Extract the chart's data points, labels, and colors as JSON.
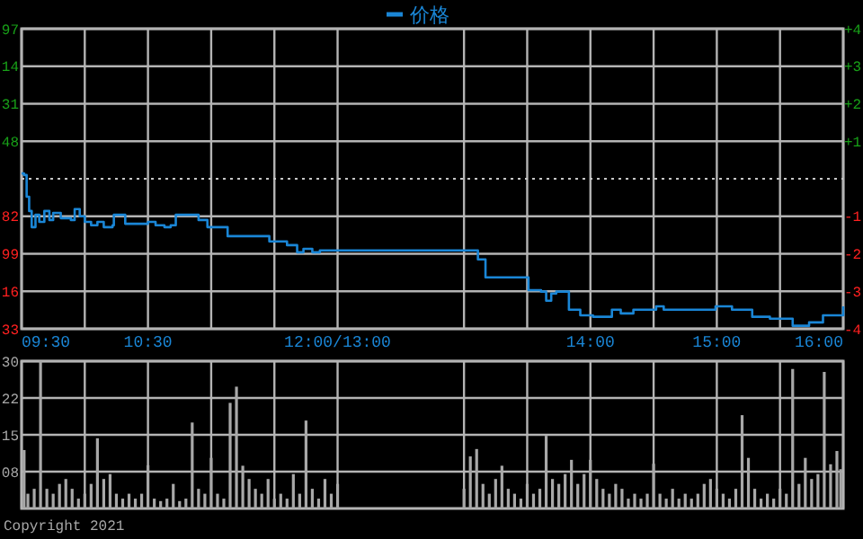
{
  "chart_data": [
    {
      "type": "step",
      "legend": "top",
      "grid": true,
      "series": [
        {
          "name": "价格",
          "color": "#1a86d6",
          "x": [
            9.5,
            9.52,
            9.54,
            9.56,
            9.58,
            9.61,
            9.64,
            9.68,
            9.72,
            9.75,
            9.81,
            9.89,
            9.92,
            9.96,
            10.0,
            10.05,
            10.1,
            10.15,
            10.22,
            10.23,
            10.3,
            10.32,
            10.5,
            10.56,
            10.63,
            10.68,
            10.72,
            10.87,
            10.9,
            10.97,
            11.1,
            11.13,
            11.43,
            11.46,
            11.6,
            11.68,
            11.73,
            11.8,
            11.86,
            12.0,
            13.0,
            13.04,
            13.11,
            13.17,
            13.47,
            13.51,
            13.61,
            13.65,
            13.69,
            13.73,
            13.83,
            13.92,
            14.02,
            14.07,
            14.17,
            14.24,
            14.34,
            14.52,
            14.58,
            14.88,
            14.99,
            15.12,
            15.28,
            15.42,
            15.6,
            15.73,
            15.84,
            16.0
          ],
          "values": [
            0.14,
            0.1,
            -0.48,
            -0.86,
            -1.29,
            -0.96,
            -1.15,
            -0.86,
            -1.1,
            -0.91,
            -1.05,
            -1.1,
            -0.81,
            -1.0,
            -1.15,
            -1.24,
            -1.15,
            -1.29,
            -1.24,
            -0.96,
            -0.96,
            -1.2,
            -1.15,
            -1.24,
            -1.29,
            -1.24,
            -0.96,
            -0.96,
            -1.1,
            -1.29,
            -1.29,
            -1.53,
            -1.53,
            -1.67,
            -1.77,
            -1.96,
            -1.87,
            -1.96,
            -1.91,
            -1.91,
            -1.91,
            -1.91,
            -2.15,
            -2.63,
            -2.63,
            -2.97,
            -3.01,
            -3.25,
            -3.06,
            -3.01,
            -3.49,
            -3.64,
            -3.68,
            -3.68,
            -3.49,
            -3.59,
            -3.49,
            -3.4,
            -3.49,
            -3.49,
            -3.4,
            -3.49,
            -3.68,
            -3.73,
            -3.92,
            -3.83,
            -3.64,
            -3.4
          ]
        }
      ],
      "xlim": [
        9.5,
        16
      ],
      "xticks": [
        {
          "value": 9.5,
          "label": "09:30"
        },
        {
          "value": 10,
          "label": null
        },
        {
          "value": 10.5,
          "label": "10:30"
        },
        {
          "value": 11,
          "label": null
        },
        {
          "value": 11.5,
          "label": null
        },
        {
          "value": 12,
          "label": "12:00/13:00"
        },
        {
          "value": 13,
          "label": null
        },
        {
          "value": 13.5,
          "label": null
        },
        {
          "value": 14,
          "label": "14:00"
        },
        {
          "value": 14.5,
          "label": null
        },
        {
          "value": 15,
          "label": "15:00"
        },
        {
          "value": 15.5,
          "label": null
        },
        {
          "value": 16,
          "label": "16:00"
        }
      ],
      "ylim": [
        -4,
        4
      ],
      "yticks": [
        {
          "value": 4,
          "label": "+4"
        },
        {
          "value": 3,
          "label": "+3"
        },
        {
          "value": 2,
          "label": "+2"
        },
        {
          "value": 1,
          "label": "+1"
        },
        {
          "value": -1,
          "label": "-1"
        },
        {
          "value": -2,
          "label": "-2"
        },
        {
          "value": -3,
          "label": "-3"
        },
        {
          "value": -4,
          "label": "-4"
        }
      ],
      "annotations": [
        "97",
        "14",
        "31",
        "48",
        "82",
        "99",
        "16",
        "33"
      ],
      "ref_lines": [
        {
          "axis": "y",
          "value": 0,
          "color": "#c8c8c8",
          "line_style": "dotted"
        }
      ]
    },
    {
      "type": "bar",
      "grid": true,
      "tick_labels": "y",
      "series": [
        {
          "color": "#a8a8a8",
          "x": [
            9.52,
            9.55,
            9.6,
            9.65,
            9.7,
            9.75,
            9.8,
            9.85,
            9.9,
            9.95,
            10.0,
            10.05,
            10.1,
            10.15,
            10.2,
            10.25,
            10.3,
            10.35,
            10.4,
            10.45,
            10.5,
            10.55,
            10.6,
            10.65,
            10.7,
            10.75,
            10.8,
            10.85,
            10.9,
            10.95,
            11.0,
            11.05,
            11.1,
            11.15,
            11.2,
            11.25,
            11.3,
            11.35,
            11.4,
            11.45,
            11.5,
            11.55,
            11.6,
            11.65,
            11.7,
            11.75,
            11.8,
            11.85,
            11.9,
            11.95,
            12.0,
            13.0,
            13.05,
            13.1,
            13.15,
            13.2,
            13.25,
            13.3,
            13.35,
            13.4,
            13.45,
            13.5,
            13.55,
            13.6,
            13.65,
            13.7,
            13.75,
            13.8,
            13.85,
            13.9,
            13.95,
            14.0,
            14.05,
            14.1,
            14.15,
            14.2,
            14.25,
            14.3,
            14.35,
            14.4,
            14.45,
            14.5,
            14.55,
            14.6,
            14.65,
            14.7,
            14.75,
            14.8,
            14.85,
            14.9,
            14.95,
            15.0,
            15.05,
            15.1,
            15.15,
            15.2,
            15.25,
            15.3,
            15.35,
            15.4,
            15.45,
            15.5,
            15.55,
            15.6,
            15.65,
            15.7,
            15.75,
            15.8,
            15.85,
            15.9,
            15.95,
            15.98
          ],
          "values": [
            11.9,
            3,
            4,
            30,
            4,
            3,
            5,
            6,
            4,
            2,
            3,
            5,
            14.3,
            6,
            7,
            3,
            2,
            3,
            2,
            3,
            8.8,
            2,
            1.5,
            2,
            5,
            1.5,
            2,
            17.5,
            4,
            3,
            10.3,
            3,
            2,
            21.5,
            24.8,
            8.7,
            6,
            4,
            3,
            6,
            2,
            3,
            2,
            7,
            3,
            17.9,
            4,
            2,
            6,
            3,
            5,
            4,
            10.6,
            12.1,
            5,
            3,
            6,
            8.7,
            4,
            3,
            2,
            5,
            3,
            4,
            14.8,
            6,
            5,
            7,
            9.9,
            5,
            7,
            9.9,
            6,
            4,
            3,
            5,
            4,
            2,
            3,
            2,
            3,
            9.1,
            3,
            2,
            4,
            2,
            3,
            2,
            3,
            5,
            6,
            4,
            3,
            2,
            4,
            19.0,
            10.3,
            4,
            2,
            3,
            2,
            4,
            3,
            28.4,
            5,
            10.3,
            6,
            7,
            27.8,
            9,
            11.7,
            8
          ]
        }
      ],
      "xlim": [
        9.5,
        16
      ],
      "xticks": [
        {
          "value": 9.5,
          "label": null
        },
        {
          "value": 10,
          "label": null
        },
        {
          "value": 10.5,
          "label": null
        },
        {
          "value": 11,
          "label": null
        },
        {
          "value": 11.5,
          "label": null
        },
        {
          "value": 12,
          "label": null
        },
        {
          "value": 13,
          "label": null
        },
        {
          "value": 13.5,
          "label": null
        },
        {
          "value": 14,
          "label": null
        },
        {
          "value": 14.5,
          "label": null
        },
        {
          "value": 15,
          "label": null
        },
        {
          "value": 15.5,
          "label": null
        },
        {
          "value": 16,
          "label": null
        }
      ],
      "ylim": [
        0,
        30
      ],
      "yticks": [
        {
          "value": 30,
          "label": "30"
        },
        {
          "value": 22.5,
          "label": "22"
        },
        {
          "value": 15,
          "label": "15"
        },
        {
          "value": 7.5,
          "label": "08"
        }
      ],
      "annotations": [
        "Copyright 2021"
      ]
    }
  ]
}
